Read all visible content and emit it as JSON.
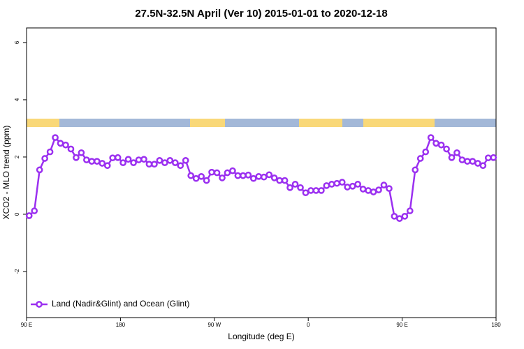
{
  "chart_data": {
    "type": "line",
    "title": "27.5N-32.5N April (Ver 10)   2015-01-01 to 2020-12-18",
    "x_label": "Longitude (deg E)",
    "y_label": "XCO2 - MLO trend (ppm)",
    "x": [
      92.5,
      97.5,
      102.5,
      107.5,
      112.5,
      117.5,
      122.5,
      127.5,
      132.5,
      137.5,
      142.5,
      147.5,
      152.5,
      157.5,
      162.5,
      167.5,
      172.5,
      177.5,
      182.5,
      187.5,
      192.5,
      197.5,
      202.5,
      207.5,
      212.5,
      217.5,
      222.5,
      227.5,
      232.5,
      237.5,
      242.5,
      247.5,
      252.5,
      257.5,
      262.5,
      267.5,
      272.5,
      277.5,
      282.5,
      287.5,
      292.5,
      297.5,
      302.5,
      307.5,
      312.5,
      317.5,
      322.5,
      327.5,
      332.5,
      337.5,
      342.5,
      347.5,
      352.5,
      357.5,
      362.5,
      367.5,
      372.5,
      377.5,
      382.5,
      387.5,
      392.5,
      397.5,
      402.5,
      407.5,
      412.5,
      417.5,
      422.5,
      427.5,
      432.5,
      437.5,
      442.5,
      447.5,
      452.5,
      457.5,
      462.5,
      467.5,
      472.5,
      477.5,
      482.5,
      487.5,
      492.5,
      497.5,
      502.5,
      507.5,
      512.5,
      517.5,
      522.5,
      527.5,
      532.5,
      537.5
    ],
    "series": [
      {
        "name": "Land (Nadir&Glint) and Ocean (Glint)",
        "color": "#9b30f0",
        "values": [
          -0.05,
          0.12,
          1.55,
          1.95,
          2.18,
          2.68,
          2.48,
          2.42,
          2.28,
          1.98,
          2.15,
          1.9,
          1.85,
          1.85,
          1.78,
          1.7,
          1.97,
          1.98,
          1.8,
          1.92,
          1.8,
          1.9,
          1.92,
          1.75,
          1.75,
          1.88,
          1.8,
          1.88,
          1.8,
          1.7,
          1.88,
          1.35,
          1.25,
          1.32,
          1.18,
          1.47,
          1.45,
          1.27,
          1.45,
          1.52,
          1.35,
          1.35,
          1.37,
          1.25,
          1.32,
          1.3,
          1.38,
          1.27,
          1.18,
          1.18,
          0.93,
          1.05,
          0.93,
          0.75,
          0.83,
          0.83,
          0.83,
          1.0,
          1.05,
          1.08,
          1.12,
          0.95,
          0.98,
          1.05,
          0.88,
          0.83,
          0.78,
          0.85,
          1.02,
          0.9,
          -0.07,
          -0.15,
          -0.07,
          0.12,
          1.55,
          1.95,
          2.18,
          2.68,
          2.48,
          2.42,
          2.28,
          1.98,
          2.15,
          1.9,
          1.85,
          1.85,
          1.78,
          1.7,
          1.97,
          1.98
        ]
      }
    ],
    "xlim": [
      90,
      540
    ],
    "xticks": [
      {
        "value": 90,
        "label": "90 E"
      },
      180,
      {
        "value": 270,
        "label": "90 W"
      },
      {
        "value": 360,
        "label": "0"
      },
      {
        "value": 450,
        "label": "90 E"
      },
      {
        "value": 540,
        "label": "180"
      }
    ],
    "ylim": [
      -3.61,
      6.51
    ],
    "yticks": [
      -2,
      0,
      2,
      4,
      6
    ],
    "legend": "bottom-left"
  }
}
